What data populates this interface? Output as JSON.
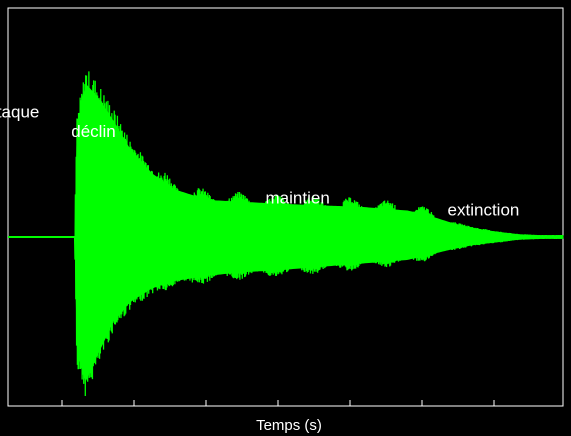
{
  "chart_data": {
    "type": "line",
    "title": "",
    "xlabel": "Temps (s)",
    "ylabel": "",
    "grid": false,
    "colors": {
      "background": "#000000",
      "signal": "#00ff00",
      "axes": "#ffffff"
    },
    "annotations": [
      {
        "text": "attaque",
        "x": 0.33,
        "y": 0.61
      },
      {
        "text": "déclin",
        "x": 0.57,
        "y": 0.51
      },
      {
        "text": "maintien",
        "x": 2.32,
        "y": 0.17
      },
      {
        "text": "extinction",
        "x": 3.96,
        "y": 0.11
      }
    ],
    "x_ticks_count": 7,
    "xlim": [
      0,
      5
    ],
    "ylim": [
      -1,
      1
    ],
    "series": [
      {
        "envelope_upper": {
          "x": [
            0,
            0.6,
            0.62,
            0.7,
            0.8,
            0.95,
            1.1,
            1.3,
            1.5,
            1.8,
            2.1,
            2.4,
            2.8,
            3.2,
            3.6,
            3.8,
            4.0,
            4.2,
            4.4,
            4.6,
            4.8,
            5.0
          ],
          "y": [
            0.0,
            0.0,
            0.62,
            0.87,
            0.8,
            0.66,
            0.5,
            0.36,
            0.27,
            0.21,
            0.2,
            0.19,
            0.18,
            0.17,
            0.15,
            0.12,
            0.08,
            0.05,
            0.03,
            0.015,
            0.01,
            0.01
          ]
        },
        "envelope_lower": {
          "x": [
            0,
            0.6,
            0.62,
            0.7,
            0.8,
            0.95,
            1.1,
            1.3,
            1.5,
            1.8,
            2.1,
            2.4,
            2.8,
            3.2,
            3.6,
            3.8,
            4.0,
            4.2,
            4.4,
            4.6,
            4.8,
            5.0
          ],
          "y": [
            0.0,
            0.0,
            -0.65,
            -0.82,
            -0.68,
            -0.48,
            -0.37,
            -0.29,
            -0.25,
            -0.22,
            -0.2,
            -0.19,
            -0.17,
            -0.15,
            -0.13,
            -0.1,
            -0.07,
            -0.045,
            -0.03,
            -0.015,
            -0.01,
            -0.01
          ]
        }
      }
    ]
  }
}
